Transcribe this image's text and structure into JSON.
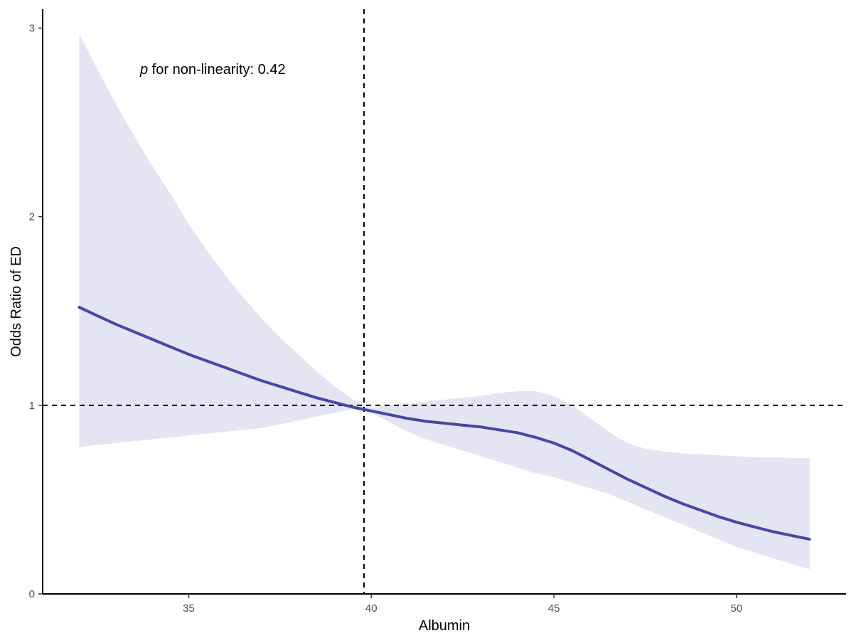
{
  "chart_data": {
    "type": "line",
    "xlabel": "Albumin",
    "ylabel": "Odds Ratio of ED",
    "annotation": {
      "prefix": "p",
      "text": " for non-linearity: 0.42"
    },
    "xlim": [
      31.0,
      53.0
    ],
    "ylim": [
      0.0,
      3.1
    ],
    "x_ticks": [
      35,
      40,
      45,
      50
    ],
    "y_ticks": [
      0,
      1,
      2,
      3
    ],
    "reference_lines": {
      "x": 39.8,
      "y": 1.0
    },
    "colors": {
      "line": "#4747A6",
      "ribbon": "#E4E4F3"
    },
    "series": [
      {
        "x": [
          32.0,
          32.5,
          33,
          33.5,
          34,
          34.5,
          35,
          35.5,
          36,
          36.5,
          37,
          37.5,
          38,
          38.5,
          39,
          39.5,
          40,
          40.5,
          41,
          41.5,
          42,
          42.5,
          43,
          43.5,
          44,
          44.5,
          45,
          45.5,
          46,
          46.5,
          47,
          47.5,
          48,
          48.5,
          49,
          49.5,
          50,
          50.5,
          51,
          51.5,
          52
        ],
        "y": [
          1.52,
          1.475,
          1.43,
          1.39,
          1.35,
          1.31,
          1.27,
          1.235,
          1.2,
          1.165,
          1.13,
          1.1,
          1.07,
          1.04,
          1.015,
          0.99,
          0.97,
          0.95,
          0.93,
          0.915,
          0.905,
          0.895,
          0.885,
          0.87,
          0.855,
          0.83,
          0.8,
          0.76,
          0.71,
          0.66,
          0.61,
          0.565,
          0.52,
          0.48,
          0.445,
          0.41,
          0.38,
          0.355,
          0.33,
          0.31,
          0.29
        ],
        "lower": [
          0.78,
          0.79,
          0.8,
          0.81,
          0.82,
          0.83,
          0.84,
          0.85,
          0.86,
          0.87,
          0.88,
          0.9,
          0.92,
          0.94,
          0.96,
          0.98,
          0.96,
          0.91,
          0.86,
          0.82,
          0.79,
          0.76,
          0.73,
          0.7,
          0.67,
          0.64,
          0.62,
          0.59,
          0.56,
          0.53,
          0.49,
          0.45,
          0.41,
          0.37,
          0.33,
          0.29,
          0.25,
          0.22,
          0.19,
          0.16,
          0.13
        ],
        "upper": [
          2.97,
          2.78,
          2.6,
          2.43,
          2.27,
          2.12,
          1.96,
          1.82,
          1.69,
          1.57,
          1.46,
          1.36,
          1.27,
          1.18,
          1.1,
          1.03,
          0.985,
          1.0,
          1.01,
          1.02,
          1.03,
          1.04,
          1.05,
          1.065,
          1.075,
          1.075,
          1.05,
          1.0,
          0.93,
          0.86,
          0.8,
          0.77,
          0.755,
          0.745,
          0.74,
          0.735,
          0.73,
          0.725,
          0.725,
          0.72,
          0.72
        ]
      }
    ]
  }
}
